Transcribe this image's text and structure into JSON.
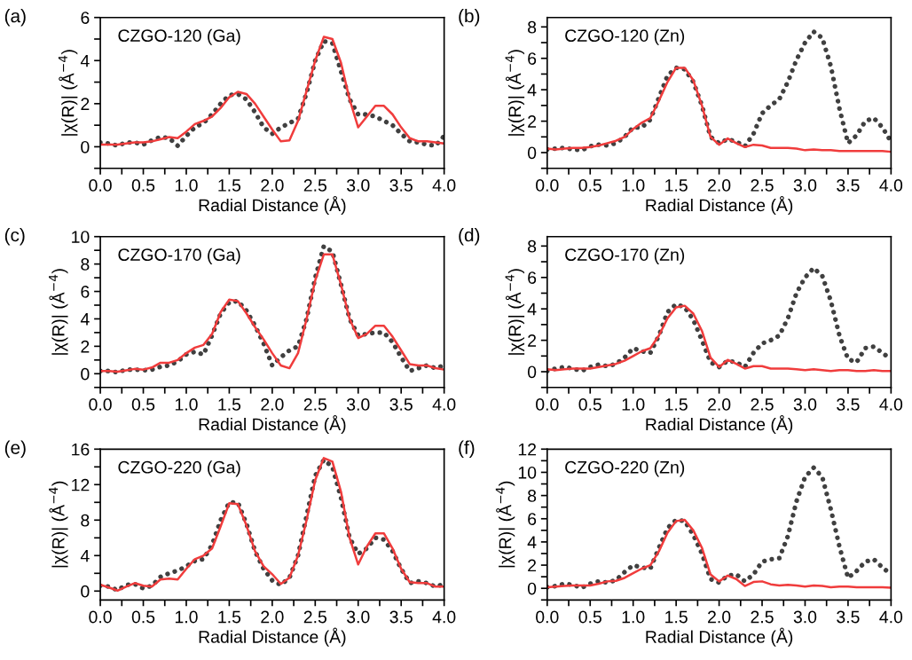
{
  "chart_data": [
    {
      "type": "line",
      "title": "CZGO-120 (Ga)",
      "annotations": [
        "(a)"
      ],
      "xlabel": "Radial Distance (Å)",
      "ylabel": "|χ(R)| (Å$^{−4}$)",
      "x": [
        0,
        0.1,
        0.2,
        0.3,
        0.4,
        0.5,
        0.6,
        0.7,
        0.8,
        0.9,
        1.0,
        1.1,
        1.2,
        1.3,
        1.4,
        1.5,
        1.6,
        1.7,
        1.8,
        1.9,
        2.0,
        2.1,
        2.2,
        2.3,
        2.4,
        2.5,
        2.6,
        2.7,
        2.8,
        2.9,
        3.0,
        3.1,
        3.2,
        3.3,
        3.4,
        3.5,
        3.6,
        3.7,
        3.8,
        3.9,
        4.0
      ],
      "series": [
        {
          "color": "#404040",
          "line_style": "dotted",
          "values": [
            0.2,
            0.15,
            0.05,
            0.2,
            0.2,
            0.1,
            0.3,
            0.45,
            0.4,
            0.05,
            0.5,
            0.9,
            1.1,
            1.5,
            2.0,
            2.4,
            2.45,
            2.2,
            1.6,
            0.9,
            0.6,
            0.9,
            1.1,
            1.3,
            2.5,
            4.0,
            4.9,
            4.8,
            3.5,
            2.2,
            1.5,
            1.5,
            1.4,
            1.2,
            1.0,
            0.6,
            0.25,
            0.2,
            0.1,
            0.05,
            0.5
          ]
        },
        {
          "color": "#f03c3c",
          "line_style": "solid",
          "values": [
            0.1,
            0.1,
            0.1,
            0.15,
            0.2,
            0.2,
            0.25,
            0.35,
            0.45,
            0.4,
            0.7,
            1.05,
            1.2,
            1.4,
            1.8,
            2.3,
            2.55,
            2.45,
            2.0,
            1.4,
            0.8,
            0.25,
            0.3,
            1.2,
            2.6,
            4.0,
            5.1,
            5.0,
            3.9,
            2.2,
            0.9,
            1.4,
            1.9,
            1.9,
            1.5,
            0.9,
            0.4,
            0.25,
            0.25,
            0.2,
            0.15
          ]
        }
      ],
      "xlim": [
        0,
        4
      ],
      "xticks": [
        {
          "value": 0,
          "label": "0.0"
        },
        {
          "value": 0.25,
          "label": null
        },
        {
          "value": 0.5,
          "label": "0.5"
        },
        {
          "value": 0.75,
          "label": null
        },
        {
          "value": 1,
          "label": "1.0"
        },
        {
          "value": 1.25,
          "label": null
        },
        {
          "value": 1.5,
          "label": "1.5"
        },
        {
          "value": 1.75,
          "label": null
        },
        {
          "value": 2,
          "label": "2.0"
        },
        {
          "value": 2.25,
          "label": null
        },
        {
          "value": 2.5,
          "label": "2.5"
        },
        {
          "value": 2.75,
          "label": null
        },
        {
          "value": 3,
          "label": "3.0"
        },
        {
          "value": 3.25,
          "label": null
        },
        {
          "value": 3.5,
          "label": "3.5"
        },
        {
          "value": 3.75,
          "label": null
        },
        {
          "value": 4,
          "label": "4.0"
        }
      ],
      "ylim": [
        -1,
        6
      ],
      "yticks": [
        {
          "value": -1,
          "label": null
        },
        0,
        {
          "value": 1,
          "label": null
        },
        2,
        {
          "value": 3,
          "label": null
        },
        4,
        {
          "value": 5,
          "label": null
        },
        6
      ],
      "grid": false,
      "legend": false
    },
    {
      "type": "line",
      "title": "CZGO-120 (Zn)",
      "annotations": [
        "(b)"
      ],
      "xlabel": "Radial Distance (Å)",
      "ylabel": "|χ(R)| (Å$^{−4}$)",
      "x": [
        0,
        0.1,
        0.2,
        0.3,
        0.4,
        0.5,
        0.6,
        0.7,
        0.8,
        0.9,
        1.0,
        1.1,
        1.2,
        1.3,
        1.4,
        1.5,
        1.6,
        1.7,
        1.8,
        1.9,
        2.0,
        2.1,
        2.2,
        2.3,
        2.4,
        2.5,
        2.6,
        2.7,
        2.8,
        2.9,
        3.0,
        3.1,
        3.2,
        3.3,
        3.4,
        3.5,
        3.6,
        3.7,
        3.8,
        3.9,
        4.0
      ],
      "series": [
        {
          "color": "#404040",
          "line_style": "dotted",
          "values": [
            0.2,
            0.25,
            0.3,
            0.2,
            0.15,
            0.4,
            0.5,
            0.45,
            0.6,
            1.0,
            1.6,
            1.6,
            2.1,
            3.5,
            4.9,
            5.4,
            5.3,
            4.5,
            3.0,
            1.0,
            0.6,
            0.85,
            0.7,
            0.4,
            1.2,
            2.5,
            3.0,
            3.4,
            4.5,
            5.9,
            7.0,
            7.7,
            7.3,
            5.5,
            2.8,
            0.6,
            1.1,
            2.0,
            2.2,
            1.6,
            0.7
          ]
        },
        {
          "color": "#f03c3c",
          "line_style": "solid",
          "values": [
            0.25,
            0.2,
            0.25,
            0.3,
            0.3,
            0.35,
            0.45,
            0.6,
            0.75,
            1.0,
            1.5,
            1.9,
            2.2,
            3.3,
            4.5,
            5.4,
            5.4,
            4.6,
            3.0,
            1.0,
            0.5,
            0.9,
            0.6,
            0.35,
            0.5,
            0.45,
            0.3,
            0.3,
            0.3,
            0.25,
            0.15,
            0.2,
            0.15,
            0.15,
            0.1,
            0.1,
            0.1,
            0.1,
            0.1,
            0.1,
            0.05
          ]
        }
      ],
      "xlim": [
        0,
        4
      ],
      "xticks": [
        {
          "value": 0,
          "label": "0.0"
        },
        {
          "value": 0.25,
          "label": null
        },
        {
          "value": 0.5,
          "label": "0.5"
        },
        {
          "value": 0.75,
          "label": null
        },
        {
          "value": 1,
          "label": "1.0"
        },
        {
          "value": 1.25,
          "label": null
        },
        {
          "value": 1.5,
          "label": "1.5"
        },
        {
          "value": 1.75,
          "label": null
        },
        {
          "value": 2,
          "label": "2.0"
        },
        {
          "value": 2.25,
          "label": null
        },
        {
          "value": 2.5,
          "label": "2.5"
        },
        {
          "value": 2.75,
          "label": null
        },
        {
          "value": 3,
          "label": "3.0"
        },
        {
          "value": 3.25,
          "label": null
        },
        {
          "value": 3.5,
          "label": "3.5"
        },
        {
          "value": 3.75,
          "label": null
        },
        {
          "value": 4,
          "label": "4.0"
        }
      ],
      "ylim": [
        -1,
        8.6
      ],
      "yticks": [
        {
          "value": -1,
          "label": null
        },
        0,
        {
          "value": 1,
          "label": null
        },
        2,
        {
          "value": 3,
          "label": null
        },
        4,
        {
          "value": 5,
          "label": null
        },
        6,
        {
          "value": 7,
          "label": null
        },
        8
      ],
      "grid": false,
      "legend": false
    },
    {
      "type": "line",
      "title": "CZGO-170 (Ga)",
      "annotations": [
        "(c)"
      ],
      "xlabel": "Radial Distance (Å)",
      "ylabel": "|χ(R)| (Å$^{−4}$)",
      "x": [
        0,
        0.1,
        0.2,
        0.3,
        0.4,
        0.5,
        0.6,
        0.7,
        0.8,
        0.9,
        1.0,
        1.1,
        1.2,
        1.3,
        1.4,
        1.5,
        1.6,
        1.7,
        1.8,
        1.9,
        2.0,
        2.1,
        2.2,
        2.3,
        2.4,
        2.5,
        2.6,
        2.7,
        2.8,
        2.9,
        3.0,
        3.1,
        3.2,
        3.3,
        3.4,
        3.5,
        3.6,
        3.7,
        3.8,
        3.9,
        4.0
      ],
      "series": [
        {
          "color": "#404040",
          "line_style": "dotted",
          "values": [
            0.2,
            0.2,
            0.1,
            0.3,
            0.3,
            0.25,
            0.3,
            0.5,
            0.6,
            0.9,
            1.4,
            1.6,
            1.4,
            2.8,
            4.4,
            5.2,
            5.3,
            4.6,
            3.5,
            2.2,
            0.6,
            1.2,
            1.7,
            2.0,
            4.0,
            7.0,
            9.3,
            8.9,
            6.5,
            4.0,
            2.8,
            2.9,
            3.0,
            3.0,
            2.3,
            1.2,
            0.2,
            0.4,
            0.6,
            0.4,
            0.6
          ]
        },
        {
          "color": "#f03c3c",
          "line_style": "solid",
          "values": [
            0.2,
            0.2,
            0.15,
            0.25,
            0.35,
            0.3,
            0.45,
            0.8,
            0.8,
            1.0,
            1.5,
            1.9,
            2.1,
            2.9,
            4.5,
            5.4,
            5.3,
            4.4,
            3.4,
            2.5,
            1.5,
            0.6,
            0.4,
            1.5,
            4.0,
            6.8,
            8.7,
            8.7,
            6.5,
            4.0,
            2.6,
            2.9,
            3.5,
            3.5,
            2.7,
            1.7,
            0.7,
            0.6,
            0.6,
            0.4,
            0.3
          ]
        }
      ],
      "xlim": [
        0,
        4
      ],
      "xticks": [
        {
          "value": 0,
          "label": "0.0"
        },
        {
          "value": 0.25,
          "label": null
        },
        {
          "value": 0.5,
          "label": "0.5"
        },
        {
          "value": 0.75,
          "label": null
        },
        {
          "value": 1,
          "label": "1.0"
        },
        {
          "value": 1.25,
          "label": null
        },
        {
          "value": 1.5,
          "label": "1.5"
        },
        {
          "value": 1.75,
          "label": null
        },
        {
          "value": 2,
          "label": "2.0"
        },
        {
          "value": 2.25,
          "label": null
        },
        {
          "value": 2.5,
          "label": "2.5"
        },
        {
          "value": 2.75,
          "label": null
        },
        {
          "value": 3,
          "label": "3.0"
        },
        {
          "value": 3.25,
          "label": null
        },
        {
          "value": 3.5,
          "label": "3.5"
        },
        {
          "value": 3.75,
          "label": null
        },
        {
          "value": 4,
          "label": "4.0"
        }
      ],
      "ylim": [
        -1,
        10
      ],
      "yticks": [
        {
          "value": -1,
          "label": null
        },
        0,
        {
          "value": 1,
          "label": null
        },
        2,
        {
          "value": 3,
          "label": null
        },
        4,
        {
          "value": 5,
          "label": null
        },
        6,
        {
          "value": 7,
          "label": null
        },
        8,
        {
          "value": 9,
          "label": null
        },
        10
      ],
      "grid": false,
      "legend": false
    },
    {
      "type": "line",
      "title": "CZGO-170 (Zn)",
      "annotations": [
        "(d)"
      ],
      "xlabel": "Radial Distance (Å)",
      "ylabel": "|χ(R)| (Å$^{−4}$)",
      "x": [
        0,
        0.1,
        0.2,
        0.3,
        0.4,
        0.5,
        0.6,
        0.7,
        0.8,
        0.9,
        1.0,
        1.1,
        1.2,
        1.3,
        1.4,
        1.5,
        1.6,
        1.7,
        1.8,
        1.9,
        2.0,
        2.1,
        2.2,
        2.3,
        2.4,
        2.5,
        2.6,
        2.7,
        2.8,
        2.9,
        3.0,
        3.1,
        3.2,
        3.3,
        3.4,
        3.5,
        3.6,
        3.7,
        3.8,
        3.9,
        4.0
      ],
      "series": [
        {
          "color": "#404040",
          "line_style": "dotted",
          "values": [
            0.05,
            0.2,
            0.3,
            0.2,
            0.05,
            0.3,
            0.45,
            0.35,
            0.5,
            0.9,
            1.5,
            1.3,
            1.2,
            2.3,
            3.8,
            4.3,
            4.1,
            3.3,
            2.0,
            0.6,
            0.3,
            0.7,
            0.6,
            0.3,
            1.2,
            1.8,
            2.0,
            2.3,
            3.4,
            5.0,
            6.0,
            6.6,
            6.1,
            4.5,
            2.3,
            0.8,
            0.6,
            1.5,
            1.6,
            1.2,
            0.8
          ]
        },
        {
          "color": "#f03c3c",
          "line_style": "solid",
          "values": [
            0.15,
            0.1,
            0.15,
            0.2,
            0.2,
            0.2,
            0.3,
            0.4,
            0.5,
            0.7,
            1.0,
            1.3,
            1.5,
            2.3,
            3.4,
            4.1,
            4.2,
            3.7,
            2.6,
            0.9,
            0.3,
            0.75,
            0.5,
            0.2,
            0.35,
            0.35,
            0.2,
            0.2,
            0.2,
            0.15,
            0.1,
            0.15,
            0.1,
            0.05,
            0.1,
            0.1,
            0.05,
            0.05,
            0.1,
            0.05,
            0.05
          ]
        }
      ],
      "xlim": [
        0,
        4
      ],
      "xticks": [
        {
          "value": 0,
          "label": "0.0"
        },
        {
          "value": 0.25,
          "label": null
        },
        {
          "value": 0.5,
          "label": "0.5"
        },
        {
          "value": 0.75,
          "label": null
        },
        {
          "value": 1,
          "label": "1.0"
        },
        {
          "value": 1.25,
          "label": null
        },
        {
          "value": 1.5,
          "label": "1.5"
        },
        {
          "value": 1.75,
          "label": null
        },
        {
          "value": 2,
          "label": "2.0"
        },
        {
          "value": 2.25,
          "label": null
        },
        {
          "value": 2.5,
          "label": "2.5"
        },
        {
          "value": 2.75,
          "label": null
        },
        {
          "value": 3,
          "label": "3.0"
        },
        {
          "value": 3.25,
          "label": null
        },
        {
          "value": 3.5,
          "label": "3.5"
        },
        {
          "value": 3.75,
          "label": null
        },
        {
          "value": 4,
          "label": "4.0"
        }
      ],
      "ylim": [
        -1,
        8.6
      ],
      "yticks": [
        {
          "value": -1,
          "label": null
        },
        0,
        {
          "value": 1,
          "label": null
        },
        2,
        {
          "value": 3,
          "label": null
        },
        4,
        {
          "value": 5,
          "label": null
        },
        6,
        {
          "value": 7,
          "label": null
        },
        8
      ],
      "grid": false,
      "legend": false
    },
    {
      "type": "line",
      "title": "CZGO-220 (Ga)",
      "annotations": [
        "(e)"
      ],
      "xlabel": "Radial Distance (Å)",
      "ylabel": "|χ(R)| (Å$^{−4}$)",
      "x": [
        0,
        0.1,
        0.2,
        0.3,
        0.4,
        0.5,
        0.6,
        0.7,
        0.8,
        0.9,
        1.0,
        1.1,
        1.2,
        1.3,
        1.4,
        1.5,
        1.6,
        1.7,
        1.8,
        1.9,
        2.0,
        2.1,
        2.2,
        2.3,
        2.4,
        2.5,
        2.6,
        2.7,
        2.8,
        2.9,
        3.0,
        3.1,
        3.2,
        3.3,
        3.4,
        3.5,
        3.6,
        3.7,
        3.8,
        3.9,
        4.0
      ],
      "series": [
        {
          "color": "#404040",
          "line_style": "dotted",
          "values": [
            0.6,
            0.5,
            0.1,
            0.7,
            0.8,
            0.3,
            0.6,
            1.6,
            2.0,
            2.3,
            2.8,
            3.4,
            3.6,
            5.2,
            8.0,
            10.0,
            10.0,
            7.6,
            4.5,
            2.5,
            1.2,
            0.7,
            1.5,
            4.0,
            8.5,
            13.0,
            14.8,
            14.0,
            10.5,
            6.0,
            4.2,
            4.8,
            6.0,
            5.8,
            4.5,
            2.5,
            0.9,
            1.1,
            0.9,
            0.5,
            0.8
          ]
        },
        {
          "color": "#f03c3c",
          "line_style": "solid",
          "values": [
            0.7,
            0.4,
            0.05,
            0.5,
            0.9,
            0.6,
            0.5,
            1.3,
            1.4,
            1.3,
            2.5,
            3.6,
            4.0,
            4.8,
            7.3,
            9.9,
            9.8,
            7.4,
            4.5,
            2.8,
            1.9,
            0.8,
            1.5,
            4.0,
            8.0,
            12.5,
            15.0,
            14.6,
            11.2,
            6.0,
            3.0,
            5.0,
            6.5,
            6.5,
            4.8,
            2.5,
            1.0,
            0.9,
            0.9,
            0.5,
            0.5
          ]
        }
      ],
      "xlim": [
        0,
        4
      ],
      "xticks": [
        {
          "value": 0,
          "label": "0.0"
        },
        {
          "value": 0.25,
          "label": null
        },
        {
          "value": 0.5,
          "label": "0.5"
        },
        {
          "value": 0.75,
          "label": null
        },
        {
          "value": 1,
          "label": "1.0"
        },
        {
          "value": 1.25,
          "label": null
        },
        {
          "value": 1.5,
          "label": "1.5"
        },
        {
          "value": 1.75,
          "label": null
        },
        {
          "value": 2,
          "label": "2.0"
        },
        {
          "value": 2.25,
          "label": null
        },
        {
          "value": 2.5,
          "label": "2.5"
        },
        {
          "value": 2.75,
          "label": null
        },
        {
          "value": 3,
          "label": "3.0"
        },
        {
          "value": 3.25,
          "label": null
        },
        {
          "value": 3.5,
          "label": "3.5"
        },
        {
          "value": 3.75,
          "label": null
        },
        {
          "value": 4,
          "label": "4.0"
        }
      ],
      "ylim": [
        -1,
        16
      ],
      "yticks": [
        0,
        {
          "value": 2,
          "label": null
        },
        4,
        {
          "value": 6,
          "label": null
        },
        8,
        {
          "value": 10,
          "label": null
        },
        12,
        {
          "value": 14,
          "label": null
        },
        16
      ],
      "grid": false,
      "legend": false
    },
    {
      "type": "line",
      "title": "CZGO-220 (Zn)",
      "annotations": [
        "(f)"
      ],
      "xlabel": "Radial Distance (Å)",
      "ylabel": "|χ(R)| (Å$^{−4}$)",
      "x": [
        0,
        0.1,
        0.2,
        0.3,
        0.4,
        0.5,
        0.6,
        0.7,
        0.8,
        0.9,
        1.0,
        1.1,
        1.2,
        1.3,
        1.4,
        1.5,
        1.6,
        1.7,
        1.8,
        1.9,
        2.0,
        2.1,
        2.2,
        2.3,
        2.4,
        2.5,
        2.6,
        2.7,
        2.8,
        2.9,
        3.0,
        3.1,
        3.2,
        3.3,
        3.4,
        3.5,
        3.6,
        3.7,
        3.8,
        3.9,
        4.0
      ],
      "series": [
        {
          "color": "#404040",
          "line_style": "dotted",
          "values": [
            0.1,
            0.2,
            0.4,
            0.3,
            0.05,
            0.4,
            0.6,
            0.5,
            0.7,
            1.4,
            2.0,
            1.8,
            1.7,
            3.5,
            5.2,
            5.9,
            5.8,
            4.6,
            3.0,
            0.8,
            0.5,
            1.1,
            1.2,
            0.6,
            1.2,
            2.3,
            2.5,
            2.6,
            4.5,
            7.5,
            9.6,
            10.4,
            9.6,
            6.8,
            3.6,
            0.9,
            1.5,
            2.3,
            2.5,
            1.8,
            1.2
          ]
        },
        {
          "color": "#f03c3c",
          "line_style": "solid",
          "values": [
            0.1,
            0.15,
            0.2,
            0.25,
            0.25,
            0.25,
            0.4,
            0.6,
            0.65,
            0.9,
            1.3,
            1.7,
            2.0,
            3.2,
            4.8,
            5.8,
            5.9,
            5.0,
            3.5,
            1.2,
            0.6,
            1.1,
            0.8,
            0.2,
            0.55,
            0.6,
            0.35,
            0.25,
            0.3,
            0.25,
            0.15,
            0.25,
            0.2,
            0.1,
            0.15,
            0.15,
            0.1,
            0.1,
            0.1,
            0.1,
            0.05
          ]
        }
      ],
      "xlim": [
        0,
        4
      ],
      "xticks": [
        {
          "value": 0,
          "label": "0.0"
        },
        {
          "value": 0.25,
          "label": null
        },
        {
          "value": 0.5,
          "label": "0.5"
        },
        {
          "value": 0.75,
          "label": null
        },
        {
          "value": 1,
          "label": "1.0"
        },
        {
          "value": 1.25,
          "label": null
        },
        {
          "value": 1.5,
          "label": "1.5"
        },
        {
          "value": 1.75,
          "label": null
        },
        {
          "value": 2,
          "label": "2.0"
        },
        {
          "value": 2.25,
          "label": null
        },
        {
          "value": 2.5,
          "label": "2.5"
        },
        {
          "value": 2.75,
          "label": null
        },
        {
          "value": 3,
          "label": "3.0"
        },
        {
          "value": 3.25,
          "label": null
        },
        {
          "value": 3.5,
          "label": "3.5"
        },
        {
          "value": 3.75,
          "label": null
        },
        {
          "value": 4,
          "label": "4.0"
        }
      ],
      "ylim": [
        -1,
        12
      ],
      "yticks": [
        {
          "value": -1,
          "label": null
        },
        0,
        {
          "value": 1,
          "label": null
        },
        2,
        {
          "value": 3,
          "label": null
        },
        4,
        {
          "value": 5,
          "label": null
        },
        6,
        {
          "value": 7,
          "label": null
        },
        8,
        {
          "value": 9,
          "label": null
        },
        10,
        {
          "value": 11,
          "label": null
        },
        12
      ],
      "grid": false,
      "legend": false
    }
  ]
}
